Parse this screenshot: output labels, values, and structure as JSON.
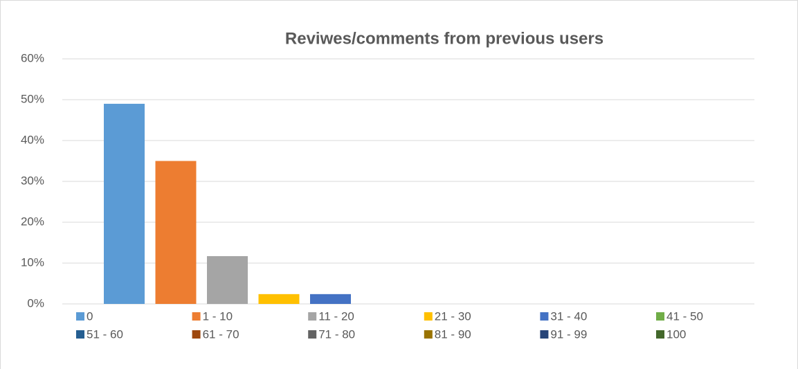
{
  "chart_data": {
    "type": "bar",
    "title": "Reviwes/comments from previous users",
    "series": [
      {
        "name": "0",
        "color": "#5b9bd5",
        "values": [
          49
        ]
      },
      {
        "name": "1 - 10",
        "color": "#ed7d31",
        "values": [
          35
        ]
      },
      {
        "name": "11 - 20",
        "color": "#a5a5a5",
        "values": [
          11.7
        ]
      },
      {
        "name": "21 - 30",
        "color": "#ffc000",
        "values": [
          2.4
        ]
      },
      {
        "name": "31 - 40",
        "color": "#4472c4",
        "values": [
          2.4
        ]
      },
      {
        "name": "41 - 50",
        "color": "#70ad47",
        "values": [
          0
        ]
      },
      {
        "name": "51 - 60",
        "color": "#255e91",
        "values": [
          0
        ]
      },
      {
        "name": "61 - 70",
        "color": "#9e480e",
        "values": [
          0
        ]
      },
      {
        "name": "71 - 80",
        "color": "#636363",
        "values": [
          0
        ]
      },
      {
        "name": "81 - 90",
        "color": "#997300",
        "values": [
          0
        ]
      },
      {
        "name": "91 - 99",
        "color": "#264478",
        "values": [
          0
        ]
      },
      {
        "name": "100",
        "color": "#43682b",
        "values": [
          0
        ]
      }
    ],
    "ylim": [
      0,
      60
    ],
    "yticks": [
      {
        "value": 0,
        "label": "0%"
      },
      {
        "value": 10,
        "label": "10%"
      },
      {
        "value": 20,
        "label": "20%"
      },
      {
        "value": 30,
        "label": "30%"
      },
      {
        "value": 40,
        "label": "40%"
      },
      {
        "value": 50,
        "label": "50%"
      },
      {
        "value": 60,
        "label": "60%"
      }
    ],
    "grid": true,
    "legend": "bottom"
  }
}
